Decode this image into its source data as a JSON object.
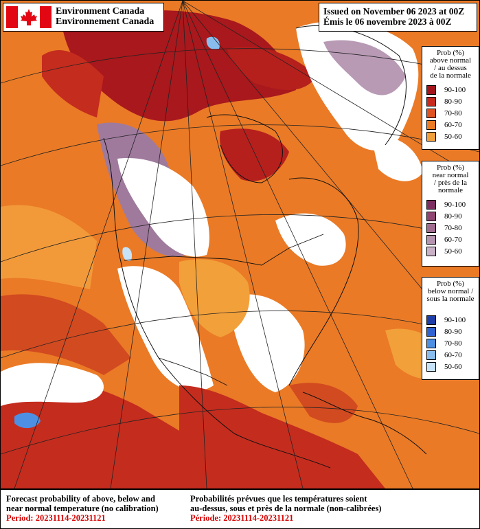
{
  "header": {
    "agency_en": "Environment Canada",
    "agency_fr": "Environnement Canada",
    "issued_en": "Issued on November 06 2023 at 00Z",
    "issued_fr": "Émis le 06 novembre 2023 à 00Z"
  },
  "legends": [
    {
      "title": [
        "Prob (%)",
        "above normal",
        "/ au dessus",
        "de la normale"
      ],
      "items": [
        {
          "label": "90-100",
          "color": "#a3141b"
        },
        {
          "label": "80-90",
          "color": "#c92a1e"
        },
        {
          "label": "70-80",
          "color": "#e0521f"
        },
        {
          "label": "60-70",
          "color": "#ec7a22"
        },
        {
          "label": "50-60",
          "color": "#f2a03a"
        }
      ]
    },
    {
      "title": [
        "Prob (%)",
        "near normal",
        "/ près de la",
        "normale"
      ],
      "items": [
        {
          "label": "90-100",
          "color": "#7c2d61"
        },
        {
          "label": "80-90",
          "color": "#8f4572"
        },
        {
          "label": "70-80",
          "color": "#a06c90"
        },
        {
          "label": "60-70",
          "color": "#b594b0"
        },
        {
          "label": "50-60",
          "color": "#c9b2c7"
        }
      ]
    },
    {
      "title": [
        "Prob (%)",
        "below normal /",
        "sous la normale"
      ],
      "items": [
        {
          "label": "90-100",
          "color": "#1d3ea8"
        },
        {
          "label": "80-90",
          "color": "#2f63d2"
        },
        {
          "label": "70-80",
          "color": "#4d90e3"
        },
        {
          "label": "60-70",
          "color": "#88bdee"
        },
        {
          "label": "50-60",
          "color": "#c7e3f7"
        }
      ]
    }
  ],
  "footer": {
    "en_line1": "Forecast probability of above, below and",
    "en_line2": "near normal temperature (no calibration)",
    "en_period": "Period: 20231114-20231121",
    "fr_line1": "Probabilités prévues que les températures soient",
    "fr_line2": "au-dessus, sous et près de la normale (non-calibrées)",
    "fr_period": "Période: 20231114-20231121"
  }
}
